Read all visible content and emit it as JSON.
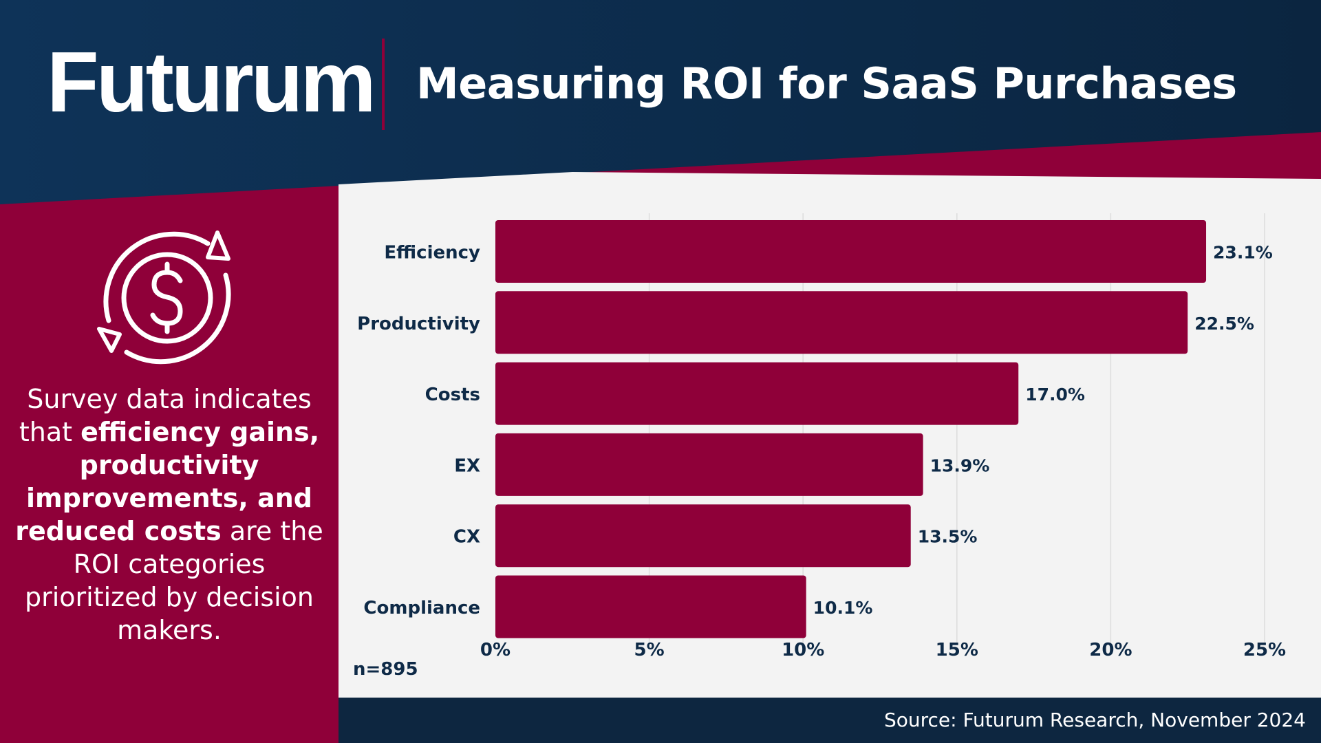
{
  "header": {
    "brand": "Futurum",
    "title": "Measuring ROI for SaaS Purchases"
  },
  "sidebar": {
    "icon": "dollar-cycle-icon",
    "text_parts": [
      {
        "text": "Survey data indicates that ",
        "bold": false
      },
      {
        "text": "efficiency gains, productivity improvements, and reduced costs",
        "bold": true
      },
      {
        "text": " are the ROI categories prioritized by decision makers.",
        "bold": false
      }
    ]
  },
  "chart_data": {
    "type": "bar",
    "orientation": "horizontal",
    "categories": [
      "Efficiency",
      "Productivity",
      "Costs",
      "EX",
      "CX",
      "Compliance"
    ],
    "values": [
      23.1,
      22.5,
      17.0,
      13.9,
      13.5,
      10.1
    ],
    "data_labels": [
      "23.1%",
      "22.5%",
      "17.0%",
      "13.9%",
      "13.5%",
      "10.1%"
    ],
    "xlim": [
      0,
      25
    ],
    "x_ticks": [
      0,
      5,
      10,
      15,
      20,
      25
    ],
    "x_tick_labels": [
      "0%",
      "5%",
      "10%",
      "15%",
      "20%",
      "25%"
    ],
    "grid": true,
    "title": "",
    "xlabel": "",
    "ylabel": ""
  },
  "sample_size": "n=895",
  "footer": {
    "source": "Source: Futurum Research, November 2024"
  },
  "colors": {
    "navy": "#0e2a47",
    "crimson": "#8f0039",
    "panel": "#f3f3f3",
    "white": "#ffffff"
  }
}
